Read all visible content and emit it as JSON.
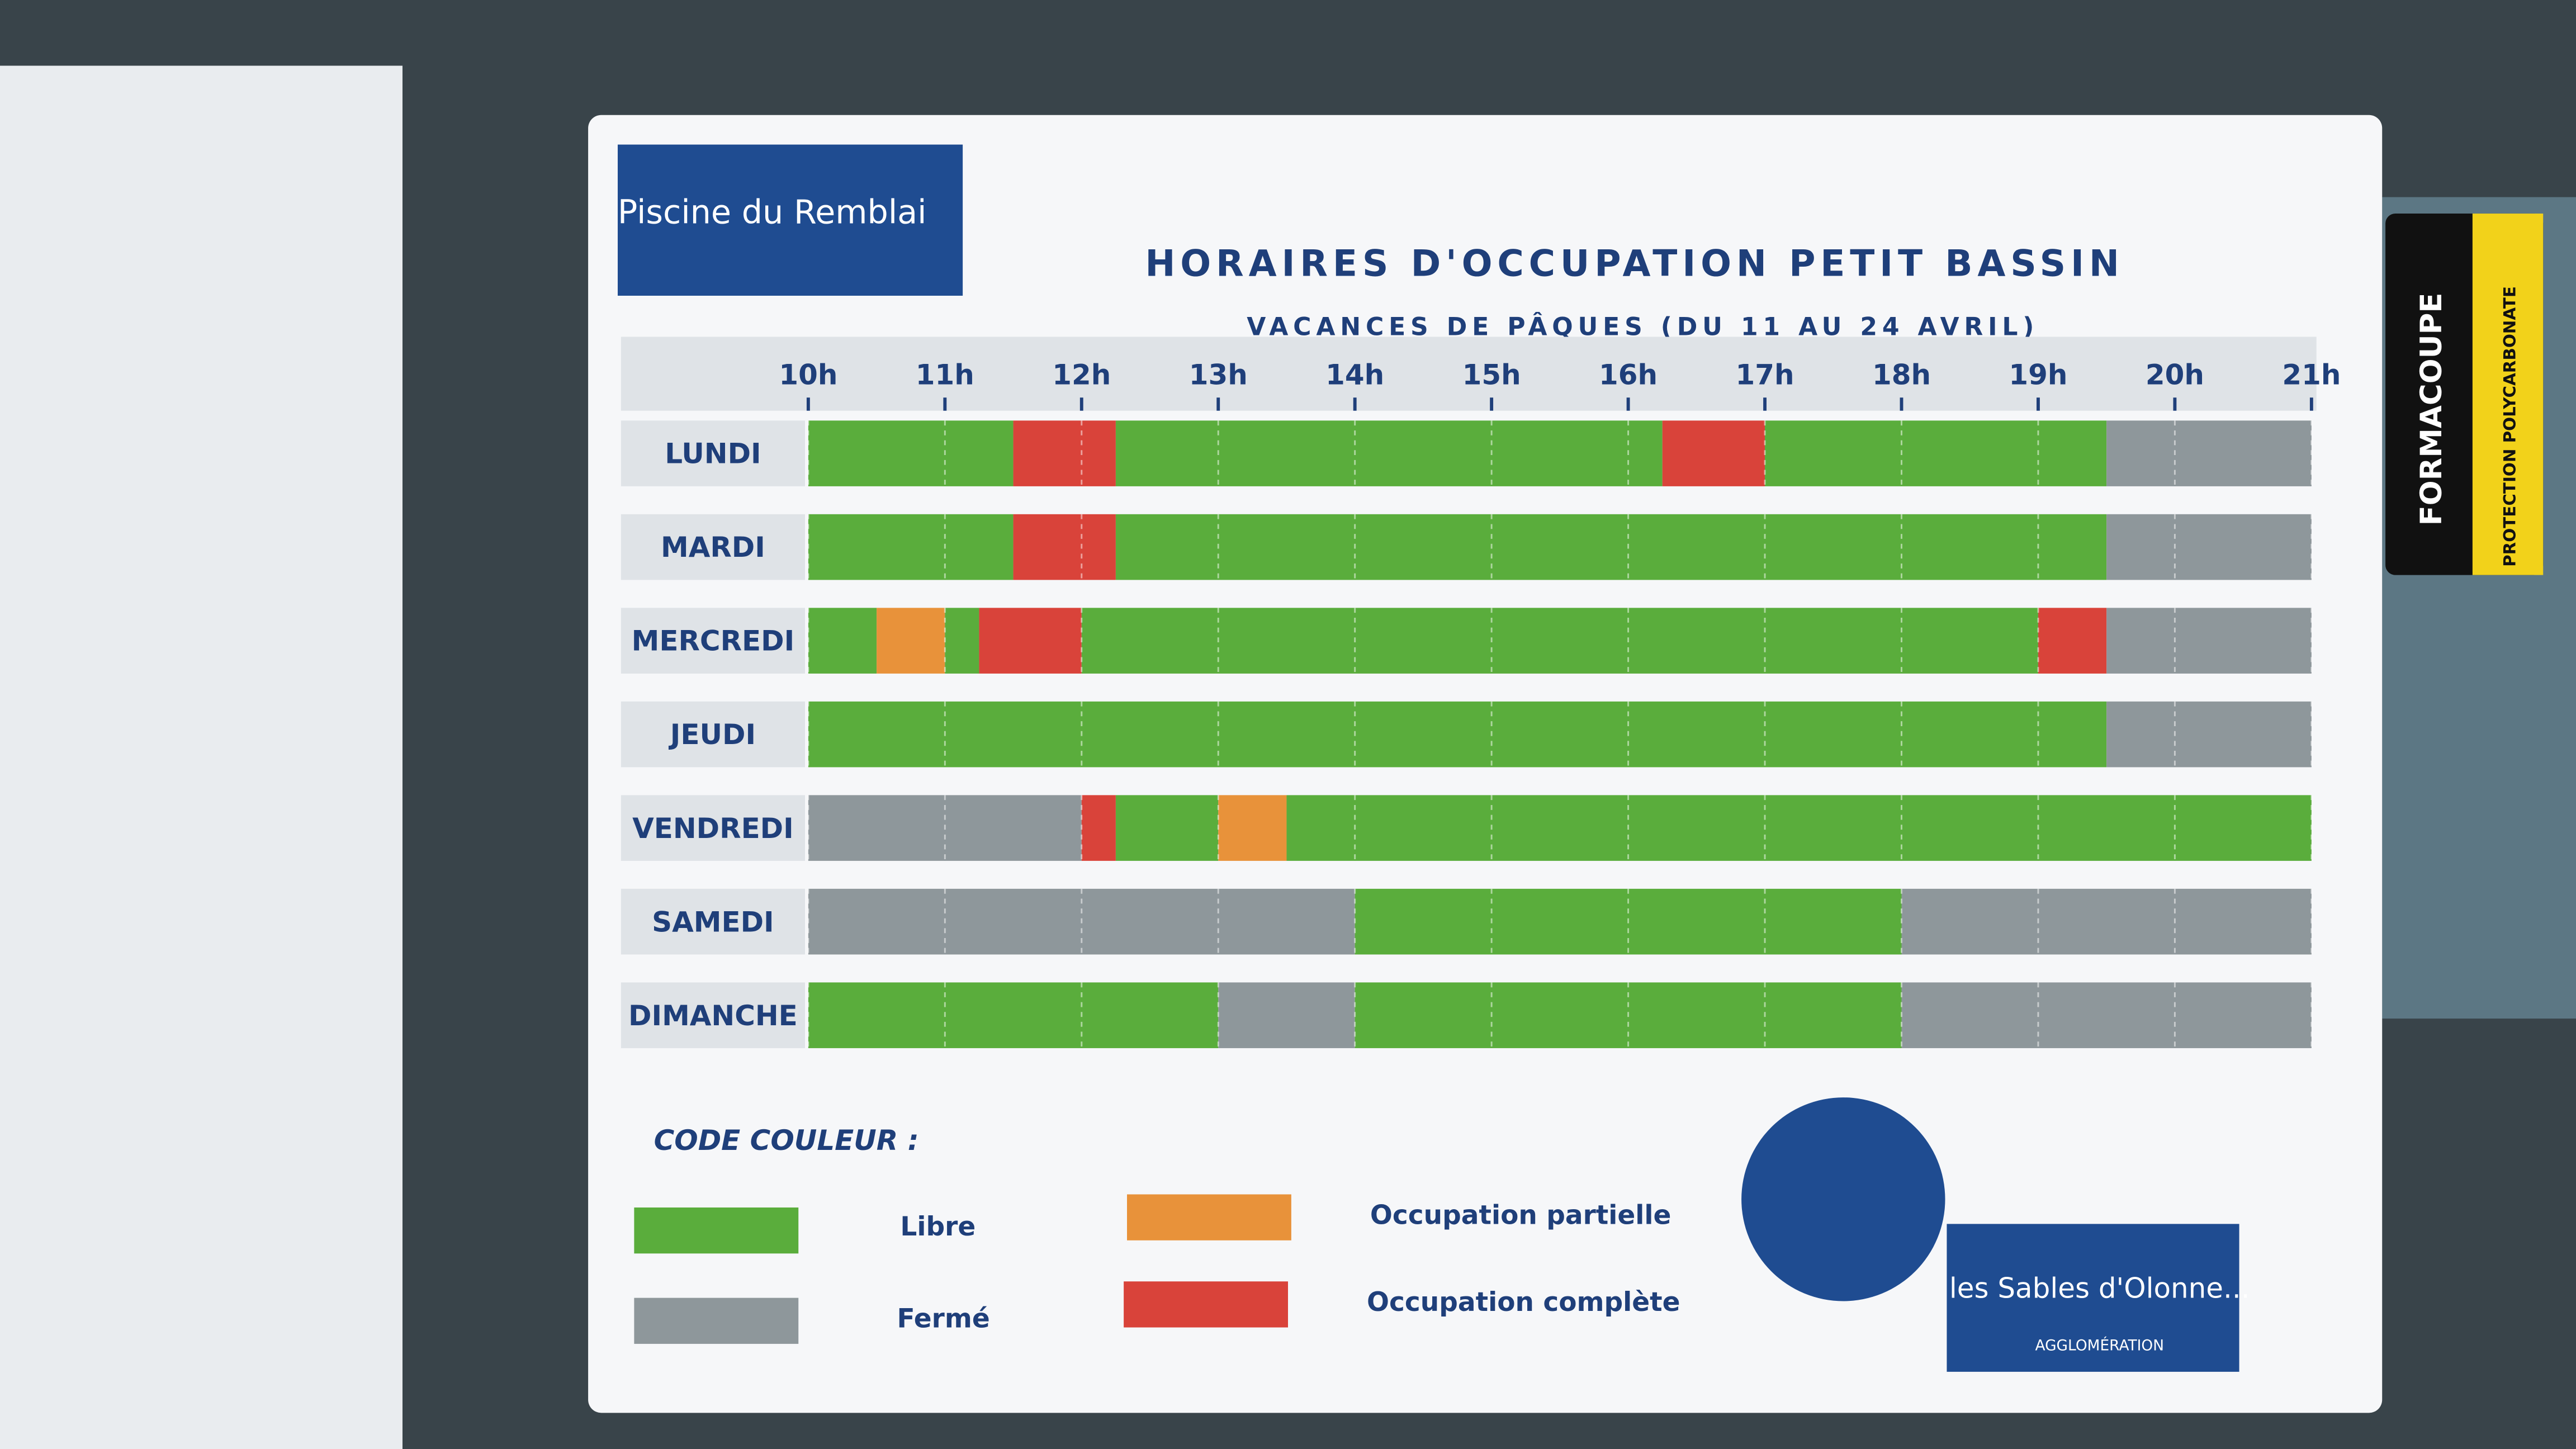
{
  "header": {
    "logo": "Piscine du Remblai",
    "title": "HORAIRES D'OCCUPATION PETIT BASSIN",
    "subtitle": "VACANCES DE PÂQUES (DU 11 AU 24 AVRIL)"
  },
  "schedule": {
    "hours": [
      {
        "value": 10,
        "label": "10h"
      },
      {
        "value": 11,
        "label": "11h"
      },
      {
        "value": 12,
        "label": "12h"
      },
      {
        "value": 13,
        "label": "13h"
      },
      {
        "value": 14,
        "label": "14h"
      },
      {
        "value": 15,
        "label": "15h"
      },
      {
        "value": 16,
        "label": "16h"
      },
      {
        "value": 17,
        "label": "17h"
      },
      {
        "value": 18,
        "label": "18h"
      },
      {
        "value": 19,
        "label": "19h"
      },
      {
        "value": 20,
        "label": "20h"
      },
      {
        "value": 21,
        "label": "21h"
      }
    ],
    "rows": [
      {
        "day": "LUNDI",
        "segments": [
          {
            "from": 10,
            "to": 11.5,
            "code": 0
          },
          {
            "from": 11.5,
            "to": 12.25,
            "code": 3
          },
          {
            "from": 12.25,
            "to": 16.25,
            "code": 0
          },
          {
            "from": 16.25,
            "to": 17,
            "code": 3
          },
          {
            "from": 17,
            "to": 19.5,
            "code": 0
          },
          {
            "from": 19.5,
            "to": 21,
            "code": 1
          }
        ]
      },
      {
        "day": "MARDI",
        "segments": [
          {
            "from": 10,
            "to": 11.5,
            "code": 0
          },
          {
            "from": 11.5,
            "to": 12.25,
            "code": 3
          },
          {
            "from": 12.25,
            "to": 19.5,
            "code": 0
          },
          {
            "from": 19.5,
            "to": 21,
            "code": 1
          }
        ]
      },
      {
        "day": "MERCREDI",
        "segments": [
          {
            "from": 10,
            "to": 10.5,
            "code": 0
          },
          {
            "from": 10.5,
            "to": 11,
            "code": 2
          },
          {
            "from": 11,
            "to": 11.25,
            "code": 0
          },
          {
            "from": 11.25,
            "to": 12,
            "code": 3
          },
          {
            "from": 12,
            "to": 19,
            "code": 0
          },
          {
            "from": 19,
            "to": 19.5,
            "code": 3
          },
          {
            "from": 19.5,
            "to": 21,
            "code": 1
          }
        ]
      },
      {
        "day": "JEUDI",
        "segments": [
          {
            "from": 10,
            "to": 19.5,
            "code": 0
          },
          {
            "from": 19.5,
            "to": 21,
            "code": 1
          }
        ]
      },
      {
        "day": "VENDREDI",
        "segments": [
          {
            "from": 10,
            "to": 12,
            "code": 1
          },
          {
            "from": 12,
            "to": 12.25,
            "code": 3
          },
          {
            "from": 12.25,
            "to": 13,
            "code": 0
          },
          {
            "from": 13,
            "to": 13.5,
            "code": 2
          },
          {
            "from": 13.5,
            "to": 21,
            "code": 0
          }
        ]
      },
      {
        "day": "SAMEDI",
        "segments": [
          {
            "from": 10,
            "to": 14,
            "code": 1
          },
          {
            "from": 14,
            "to": 18,
            "code": 0
          },
          {
            "from": 18,
            "to": 21,
            "code": 1
          }
        ]
      },
      {
        "day": "DIMANCHE",
        "segments": [
          {
            "from": 10,
            "to": 13,
            "code": 0
          },
          {
            "from": 13,
            "to": 14,
            "code": 1
          },
          {
            "from": 14,
            "to": 18,
            "code": 0
          },
          {
            "from": 18,
            "to": 21,
            "code": 1
          }
        ]
      }
    ]
  },
  "legend": {
    "title": "CODE COULEUR :",
    "items": [
      {
        "label": "Libre",
        "color": "#5aad3c"
      },
      {
        "label": "Fermé",
        "color": "#8e979b"
      },
      {
        "label": "Occupation partielle",
        "color": "#e8923a"
      },
      {
        "label": "Occupation complète",
        "color": "#d9433a"
      }
    ]
  },
  "footer": {
    "brand": "les Sables d'Olonne...",
    "sub": "AGGLOMÉRATION"
  },
  "side": {
    "brand": "FORMACOUPE",
    "note": "PROTECTION POLYCARBONATE"
  }
}
